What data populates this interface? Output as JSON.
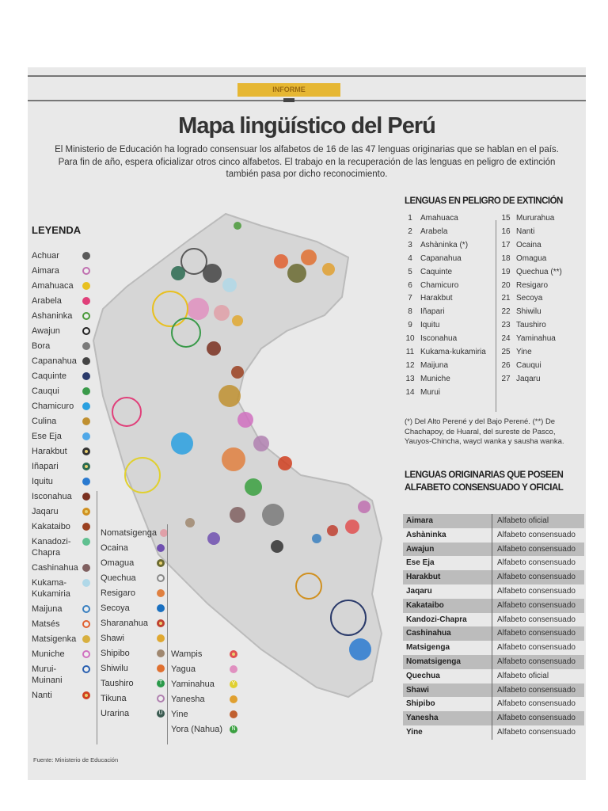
{
  "header": {
    "section_badge": "INFORME",
    "title": "Mapa lingüístico del Perú",
    "subtitle": "El Ministerio de Educación ha logrado consensuar los alfabetos de 16 de las 47 lenguas originarias que se hablan en el país. Para fin de año, espera oficializar otros cinco alfabetos. El trabajo en la recuperación de las lenguas en peligro de extinción también pasa por dicho reconocimiento.",
    "badge_color": "#e6b733"
  },
  "legend": {
    "title": "LEYENDA",
    "columns": [
      [
        {
          "label": "Achuar",
          "color": "#5a5a5a",
          "style": "fill"
        },
        {
          "label": "Aimara",
          "color": "#c070b0",
          "style": "ring"
        },
        {
          "label": "Amahuaca",
          "color": "#e8c020",
          "style": "fill"
        },
        {
          "label": "Arabela",
          "color": "#e0407a",
          "style": "fill"
        },
        {
          "label": "Ashaninka",
          "color": "#4a9a3a",
          "style": "ring"
        },
        {
          "label": "Awajun",
          "color": "#222222",
          "style": "ring"
        },
        {
          "label": "Bora",
          "color": "#7a7a7a",
          "style": "fill"
        },
        {
          "label": "Capanahua",
          "color": "#444444",
          "style": "fill"
        },
        {
          "label": "Caquinte",
          "color": "#2a3a6a",
          "style": "fill"
        },
        {
          "label": "Cauqui",
          "color": "#3a9a4a",
          "style": "fill"
        },
        {
          "label": "Chamicuro",
          "color": "#2aa0e0",
          "style": "fill"
        },
        {
          "label": "Culina",
          "color": "#c09030",
          "style": "fill"
        },
        {
          "label": "Ese Eja",
          "color": "#50a8e8",
          "style": "fill"
        },
        {
          "label": "Harakbut",
          "color": "#333333",
          "style": "target"
        },
        {
          "label": "Iñapari",
          "color": "#2a6a50",
          "style": "target"
        },
        {
          "label": "Iquitu",
          "color": "#2a7ad0",
          "style": "fill"
        },
        {
          "label": "Isconahua",
          "color": "#7a3020",
          "style": "fill"
        },
        {
          "label": "Jaqaru",
          "color": "#d09020",
          "style": "target"
        },
        {
          "label": "Kakataibo",
          "color": "#9a4020",
          "style": "fill"
        },
        {
          "label": "Kanadozi-Chapra",
          "color": "#60c090",
          "style": "fill"
        },
        {
          "label": "Cashinahua",
          "color": "#806060",
          "style": "fill"
        },
        {
          "label": "Kukama-Kukamiria",
          "color": "#b0d8e8",
          "style": "fill"
        },
        {
          "label": "Maijuna",
          "color": "#3a80c0",
          "style": "ring"
        },
        {
          "label": "Matsés",
          "color": "#e06030",
          "style": "ring"
        },
        {
          "label": "Matsigenka",
          "color": "#d8b040",
          "style": "fill"
        },
        {
          "label": "Muniche",
          "color": "#d070c0",
          "style": "ring"
        },
        {
          "label": "Murui-Muinani",
          "color": "#2a60b0",
          "style": "ring"
        },
        {
          "label": "Nanti",
          "color": "#d04020",
          "style": "target"
        }
      ],
      [
        {
          "label": "Nomatsigenga",
          "color": "#e0a0a8",
          "style": "fill"
        },
        {
          "label": "Ocaina",
          "color": "#7050b0",
          "style": "fill"
        },
        {
          "label": "Omagua",
          "color": "#6a6a30",
          "style": "target"
        },
        {
          "label": "Quechua",
          "color": "#888888",
          "style": "ring"
        },
        {
          "label": "Resigaro",
          "color": "#e08040",
          "style": "fill"
        },
        {
          "label": "Secoya",
          "color": "#1a70c0",
          "style": "fill"
        },
        {
          "label": "Sharanahua",
          "color": "#c04030",
          "style": "target"
        },
        {
          "label": "Shawi",
          "color": "#e0a830",
          "style": "fill"
        },
        {
          "label": "Shipibo",
          "color": "#a08870",
          "style": "fill"
        },
        {
          "label": "Shiwilu",
          "color": "#e07030",
          "style": "fill"
        },
        {
          "label": "Taushiro",
          "color": "#2a9a4a",
          "style": "letter",
          "letter": "T"
        },
        {
          "label": "Tikuna",
          "color": "#b080b0",
          "style": "ring"
        },
        {
          "label": "Urarina",
          "color": "#3a5a50",
          "style": "letter",
          "letter": "U"
        }
      ],
      [
        {
          "label": "Wampis",
          "color": "#e05050",
          "style": "target"
        },
        {
          "label": "Yagua",
          "color": "#e090c0",
          "style": "fill"
        },
        {
          "label": "Yaminahua",
          "color": "#e0d030",
          "style": "letter",
          "letter": "Y"
        },
        {
          "label": "Yanesha",
          "color": "#e0a030",
          "style": "fill"
        },
        {
          "label": "Yine",
          "color": "#c06030",
          "style": "fill"
        },
        {
          "label": "Yora (Nahua)",
          "color": "#3aa040",
          "style": "letter",
          "letter": "N"
        }
      ]
    ]
  },
  "endangered": {
    "title": "LENGUAS EN PELIGRO DE EXTINCIÓN",
    "items": [
      {
        "n": "1",
        "name": "Amahuaca"
      },
      {
        "n": "2",
        "name": "Arabela"
      },
      {
        "n": "3",
        "name": "Ashàninka (*)"
      },
      {
        "n": "4",
        "name": "Capanahua"
      },
      {
        "n": "5",
        "name": "Caquinte"
      },
      {
        "n": "6",
        "name": "Chamicuro"
      },
      {
        "n": "7",
        "name": "Harakbut"
      },
      {
        "n": "8",
        "name": "Iñapari"
      },
      {
        "n": "9",
        "name": "Iquitu"
      },
      {
        "n": "10",
        "name": "Isconahua"
      },
      {
        "n": "11",
        "name": "Kukama-kukamiria"
      },
      {
        "n": "12",
        "name": "Maijuna"
      },
      {
        "n": "13",
        "name": "Muniche"
      },
      {
        "n": "14",
        "name": "Murui"
      },
      {
        "n": "15",
        "name": "Mururahua"
      },
      {
        "n": "16",
        "name": "Nanti"
      },
      {
        "n": "17",
        "name": "Ocaina"
      },
      {
        "n": "18",
        "name": "Omagua"
      },
      {
        "n": "19",
        "name": "Quechua (**)"
      },
      {
        "n": "20",
        "name": "Resigaro"
      },
      {
        "n": "21",
        "name": "Secoya"
      },
      {
        "n": "22",
        "name": "Shiwilu"
      },
      {
        "n": "23",
        "name": "Taushiro"
      },
      {
        "n": "24",
        "name": "Yaminahua"
      },
      {
        "n": "25",
        "name": "Yine"
      },
      {
        "n": "26",
        "name": "Cauqui"
      },
      {
        "n": "27",
        "name": "Jaqaru"
      }
    ],
    "note": "(*) Del Alto Perené y del Bajo Perené. (**) De Chachapoy, de Huaral, del sureste de Pasco, Yauyos-Chincha, waycl wanka y sausha wanka."
  },
  "alphabets": {
    "title": "LENGUAS ORIGINARIAS QUE POSEEN ALFABETO CONSENSUADO Y OFICIAL",
    "rows": [
      {
        "language": "Aimara",
        "status": "Alfabeto oficial"
      },
      {
        "language": "Ashàninka",
        "status": "Alfabeto consensuado"
      },
      {
        "language": "Awajun",
        "status": "Alfabeto consensuado"
      },
      {
        "language": "Ese Eja",
        "status": "Alfabeto consensuado"
      },
      {
        "language": "Harakbut",
        "status": "Alfabeto consensuado"
      },
      {
        "language": "Jaqaru",
        "status": "Alfabeto consensuado"
      },
      {
        "language": "Kakataibo",
        "status": "Alfabeto consensuado"
      },
      {
        "language": "Kandozi-Chapra",
        "status": "Alfabeto consensuado"
      },
      {
        "language": "Cashinahua",
        "status": "Alfabeto consensuado"
      },
      {
        "language": "Matsigenga",
        "status": "Alfabeto consensuado"
      },
      {
        "language": "Nomatsigenga",
        "status": "Alfabeto consensuado"
      },
      {
        "language": "Quechua",
        "status": "Alfabeto oficial"
      },
      {
        "language": "Shawi",
        "status": "Alfabeto consensuado"
      },
      {
        "language": "Shipibo",
        "status": "Alfabeto consensuado"
      },
      {
        "language": "Yanesha",
        "status": "Alfabeto consensuado"
      },
      {
        "language": "Yine",
        "status": "Alfabeto consensuado"
      }
    ]
  },
  "source": "Fuente: Ministerio de Educación"
}
